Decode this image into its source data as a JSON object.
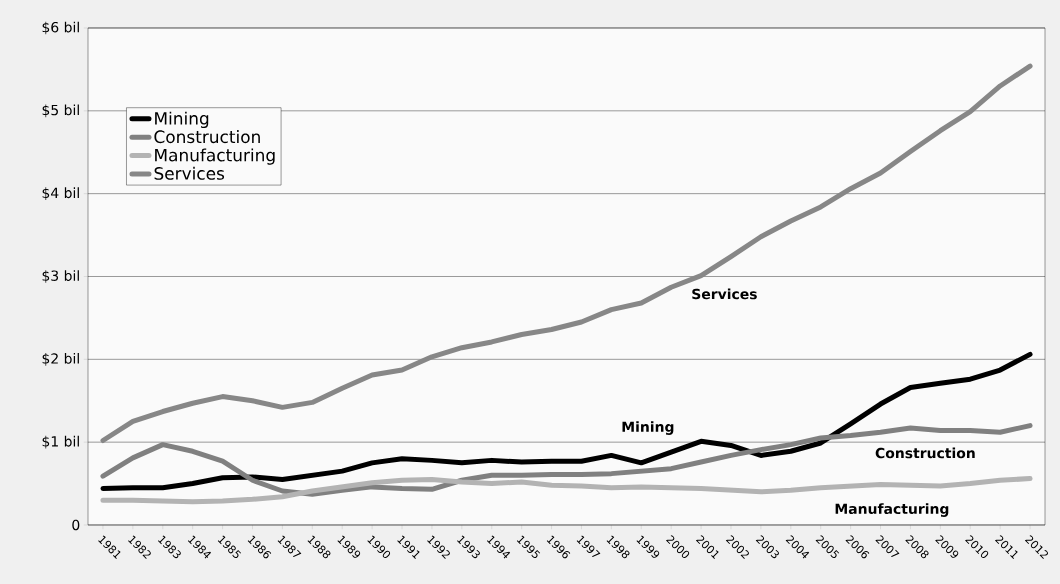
{
  "chart_data": {
    "type": "line",
    "categories": [
      "1981",
      "1982",
      "1983",
      "1984",
      "1985",
      "1986",
      "1987",
      "1988",
      "1989",
      "1990",
      "1991",
      "1992",
      "1993",
      "1994",
      "1995",
      "1996",
      "1997",
      "1998",
      "1999",
      "2000",
      "2001",
      "2002",
      "2003",
      "2004",
      "2005",
      "2006",
      "2007",
      "2008",
      "2009",
      "2010",
      "2011",
      "2012"
    ],
    "series": [
      {
        "name": "Mining",
        "color": "#000000",
        "values": [
          0.44,
          0.45,
          0.45,
          0.5,
          0.57,
          0.58,
          0.55,
          0.6,
          0.65,
          0.75,
          0.8,
          0.78,
          0.75,
          0.78,
          0.76,
          0.77,
          0.77,
          0.84,
          0.75,
          0.88,
          1.01,
          0.96,
          0.84,
          0.89,
          0.99,
          1.22,
          1.46,
          1.66,
          1.71,
          1.76,
          1.87,
          2.06
        ]
      },
      {
        "name": "Construction",
        "color": "#808080",
        "values": [
          0.59,
          0.81,
          0.97,
          0.89,
          0.77,
          0.54,
          0.41,
          0.37,
          0.42,
          0.46,
          0.44,
          0.43,
          0.54,
          0.6,
          0.6,
          0.61,
          0.61,
          0.62,
          0.65,
          0.68,
          0.76,
          0.84,
          0.91,
          0.97,
          1.05,
          1.08,
          1.12,
          1.17,
          1.14,
          1.14,
          1.12,
          1.2
        ]
      },
      {
        "name": "Manufacturing",
        "color": "#b3b3b3",
        "values": [
          0.3,
          0.3,
          0.29,
          0.28,
          0.29,
          0.31,
          0.34,
          0.41,
          0.46,
          0.51,
          0.54,
          0.55,
          0.52,
          0.5,
          0.52,
          0.48,
          0.47,
          0.45,
          0.46,
          0.45,
          0.44,
          0.42,
          0.4,
          0.42,
          0.45,
          0.47,
          0.49,
          0.48,
          0.47,
          0.5,
          0.54,
          0.56
        ]
      },
      {
        "name": "Services",
        "color": "#878787",
        "values": [
          1.02,
          1.25,
          1.37,
          1.47,
          1.55,
          1.5,
          1.42,
          1.48,
          1.65,
          1.81,
          1.87,
          2.03,
          2.14,
          2.21,
          2.3,
          2.36,
          2.45,
          2.6,
          2.68,
          2.87,
          3.01,
          3.24,
          3.48,
          3.67,
          3.84,
          4.06,
          4.25,
          4.51,
          4.76,
          4.99,
          5.3,
          5.54
        ]
      }
    ],
    "ylim": [
      0,
      6
    ],
    "yticks": [
      {
        "value": 0,
        "label": "0"
      },
      {
        "value": 1,
        "label": "$1 bil"
      },
      {
        "value": 2,
        "label": "$2 bil"
      },
      {
        "value": 3,
        "label": "$3 bil"
      },
      {
        "value": 4,
        "label": "$4 bil"
      },
      {
        "value": 5,
        "label": "$5 bil"
      },
      {
        "value": 6,
        "label": "$6 bil"
      }
    ],
    "grid": "y",
    "legend": "top left",
    "marker": "none",
    "line_style": "solid",
    "annotations": [
      "Services",
      "Mining",
      "Construction",
      "Manufacturing"
    ]
  }
}
